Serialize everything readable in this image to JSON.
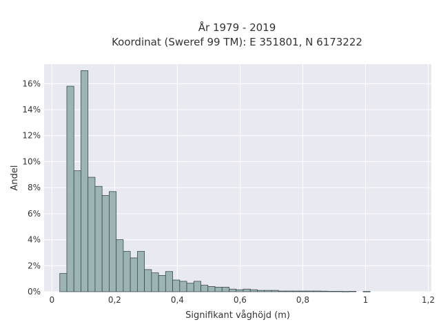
{
  "chart_data": {
    "type": "bar",
    "title": "År 1979 - 2019",
    "subtitle": "Koordinat (Sweref 99 TM): E 351801, N 6173222",
    "xlabel": "Signifikant våghöjd (m)",
    "ylabel": "Andel",
    "xlim": [
      -0.025,
      1.21
    ],
    "ylim": [
      0,
      17.5
    ],
    "x_ticks": [
      0,
      0.2,
      0.4,
      0.6,
      0.8,
      1,
      1.2
    ],
    "x_tick_labels": [
      "0",
      "0,2",
      "0,4",
      "0,6",
      "0,8",
      "1",
      "1,2"
    ],
    "y_ticks": [
      0,
      2,
      4,
      6,
      8,
      10,
      12,
      14,
      16
    ],
    "y_tick_labels": [
      "0%",
      "2%",
      "4%",
      "6%",
      "8%",
      "10%",
      "12%",
      "14%",
      "16%"
    ],
    "grid": true,
    "bin_start": 0.025,
    "bin_width": 0.0225,
    "values": [
      1.4,
      15.8,
      9.3,
      17.0,
      8.8,
      8.1,
      7.4,
      7.7,
      4.0,
      3.1,
      2.6,
      3.1,
      1.7,
      1.45,
      1.25,
      1.55,
      0.9,
      0.8,
      0.65,
      0.8,
      0.5,
      0.4,
      0.35,
      0.35,
      0.2,
      0.15,
      0.2,
      0.15,
      0.1,
      0.1,
      0.1,
      0.05,
      0.05,
      0.05,
      0.05,
      0.05,
      0.05,
      0.04,
      0.03,
      0.03,
      0.02,
      0.03,
      0,
      0.02,
      0
    ],
    "colors": {
      "bar_fill": "#9db4b5",
      "bar_edge": "#3a4a4c",
      "plot_bg": "#e9e9f1",
      "grid": "#ffffff"
    }
  }
}
